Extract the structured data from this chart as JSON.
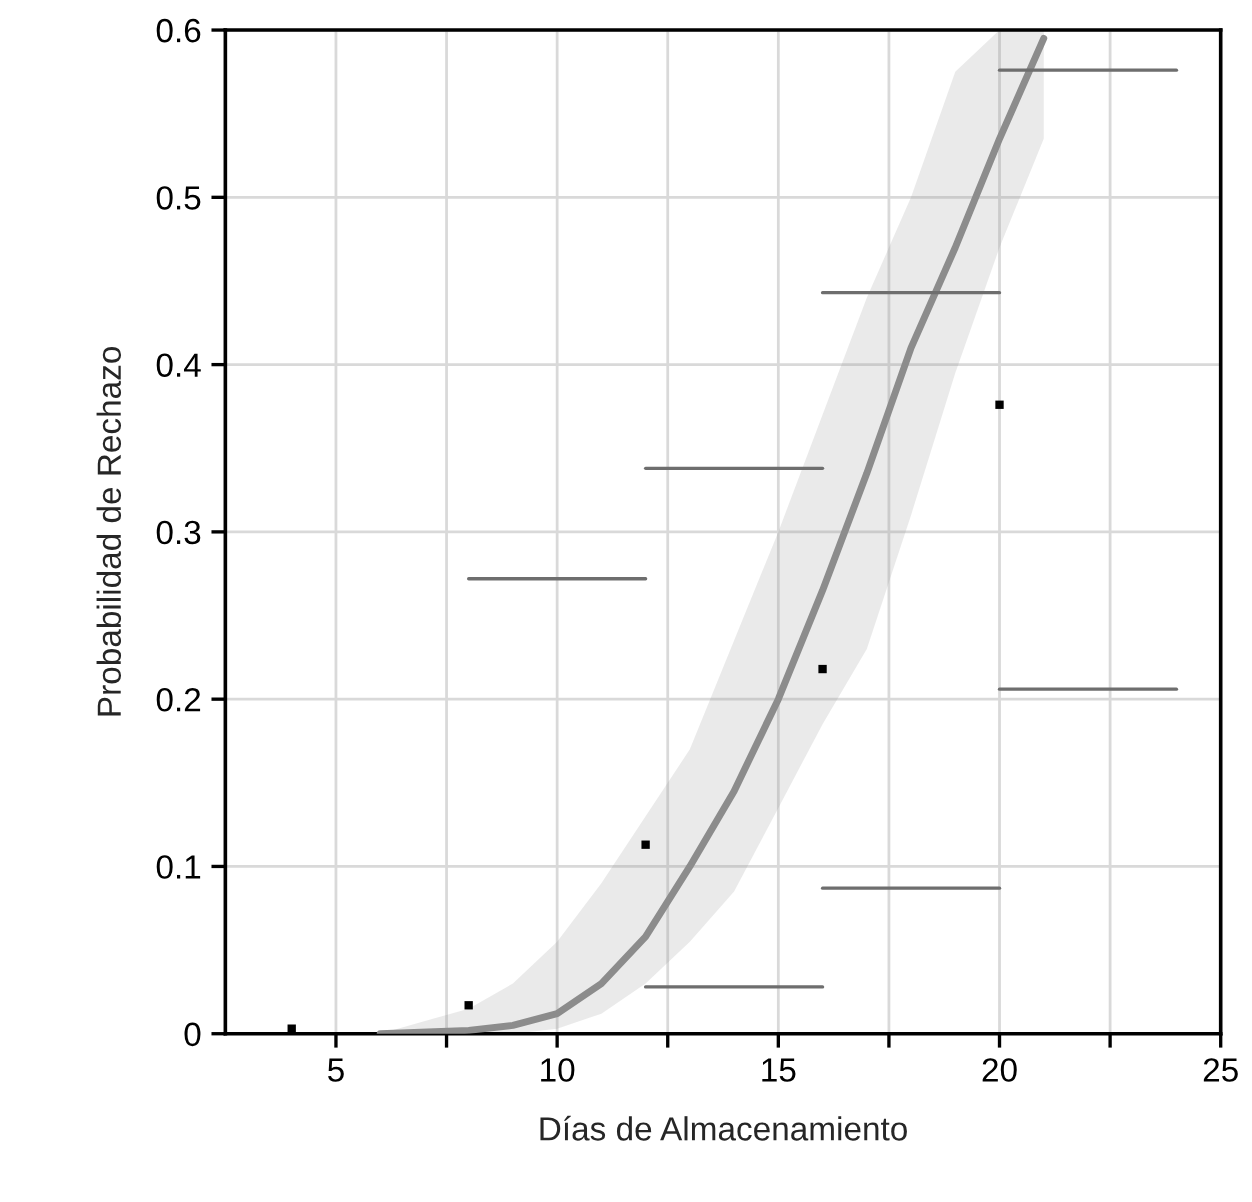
{
  "chart_data": {
    "type": "line",
    "xlabel": "Días de Almacenamiento",
    "ylabel": "Probabilidad de Rechazo",
    "xlim": [
      2.5,
      25
    ],
    "ylim": [
      0,
      0.6
    ],
    "xticks": [
      {
        "value": 5,
        "label": "5"
      },
      {
        "value": 7.5,
        "label": null
      },
      {
        "value": 10,
        "label": "10"
      },
      {
        "value": 12.5,
        "label": null
      },
      {
        "value": 15,
        "label": "15"
      },
      {
        "value": 17.5,
        "label": null
      },
      {
        "value": 20,
        "label": "20"
      },
      {
        "value": 22.5,
        "label": null
      },
      {
        "value": 25,
        "label": "25"
      }
    ],
    "yticks": [
      {
        "value": 0,
        "label": "0"
      },
      {
        "value": 0.1,
        "label": "0.1"
      },
      {
        "value": 0.2,
        "label": "0.2"
      },
      {
        "value": 0.3,
        "label": "0.3"
      },
      {
        "value": 0.4,
        "label": "0.4"
      },
      {
        "value": 0.5,
        "label": "0.5"
      },
      {
        "value": 0.6,
        "label": "0.6"
      }
    ],
    "grid": true,
    "legend": false,
    "series": [
      {
        "color": "#8c8c8c",
        "x": [
          6,
          8,
          9,
          10,
          11,
          12,
          13,
          14,
          15,
          16,
          17,
          18,
          19,
          20,
          21
        ],
        "values": [
          0.0,
          0.002,
          0.005,
          0.012,
          0.03,
          0.058,
          0.1,
          0.145,
          0.2,
          0.265,
          0.335,
          0.41,
          0.47,
          0.535,
          0.595
        ],
        "lower": [
          0.0,
          0.0,
          0.0,
          0.003,
          0.012,
          0.03,
          0.055,
          0.085,
          0.135,
          0.185,
          0.23,
          0.31,
          0.395,
          0.47,
          0.535
        ],
        "upper": [
          0.0,
          0.015,
          0.03,
          0.055,
          0.09,
          0.13,
          0.17,
          0.235,
          0.3,
          0.37,
          0.44,
          0.5,
          0.575,
          0.6,
          0.6
        ]
      },
      {
        "type": "scatter",
        "color": "#000000",
        "marker": "square",
        "x": [
          4,
          8,
          12,
          16,
          20
        ],
        "values": [
          0.003,
          0.017,
          0.113,
          0.218,
          0.376
        ]
      },
      {
        "type": "line",
        "color": "#6e6e6e",
        "x": [
          8,
          12
        ],
        "values": [
          0.272,
          0.272
        ]
      },
      {
        "type": "line",
        "color": "#6e6e6e",
        "x": [
          12,
          16
        ],
        "values": [
          0.338,
          0.338
        ]
      },
      {
        "type": "line",
        "color": "#6e6e6e",
        "x": [
          12,
          16
        ],
        "values": [
          0.028,
          0.028
        ]
      },
      {
        "type": "line",
        "color": "#6e6e6e",
        "x": [
          16,
          20
        ],
        "values": [
          0.443,
          0.443
        ]
      },
      {
        "type": "line",
        "color": "#6e6e6e",
        "x": [
          16,
          20
        ],
        "values": [
          0.087,
          0.087
        ]
      },
      {
        "type": "line",
        "color": "#6e6e6e",
        "x": [
          20,
          24
        ],
        "values": [
          0.576,
          0.576
        ]
      },
      {
        "type": "line",
        "color": "#6e6e6e",
        "x": [
          20,
          24
        ],
        "values": [
          0.206,
          0.206
        ]
      }
    ]
  }
}
